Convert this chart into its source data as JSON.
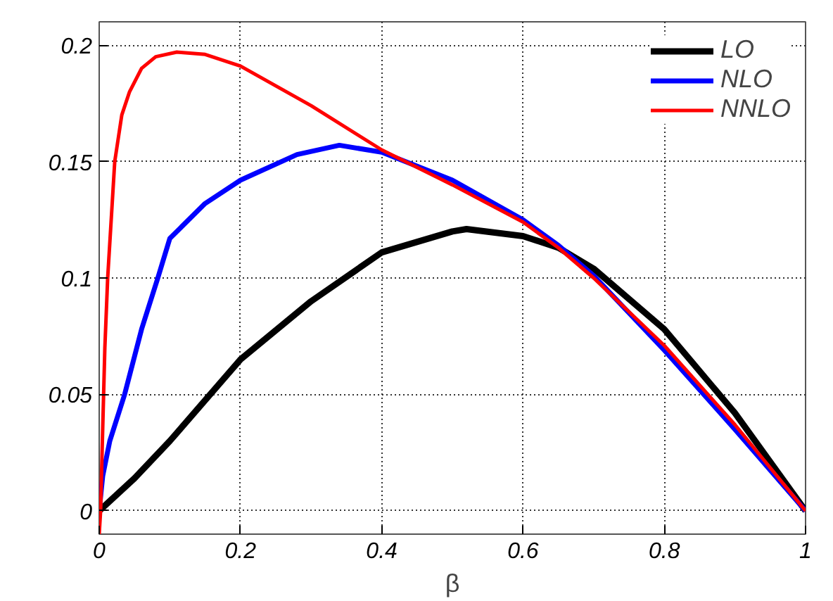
{
  "chart_data": {
    "type": "line",
    "xlabel": "β",
    "xlim": [
      0,
      1
    ],
    "ylim": [
      -0.01,
      0.21
    ],
    "xticks": [
      0,
      0.2,
      0.4,
      0.6,
      0.8,
      1
    ],
    "yticks": [
      0,
      0.05,
      0.1,
      0.15,
      0.2
    ],
    "grid": true,
    "legend": "top right",
    "marker": "none",
    "line_style": "solid",
    "series": [
      {
        "name": "LO",
        "color": "#000000",
        "x": [
          0,
          0.05,
          0.1,
          0.2,
          0.3,
          0.4,
          0.5,
          0.52,
          0.6,
          0.65,
          0.7,
          0.8,
          0.9,
          1
        ],
        "values": [
          0,
          0.014,
          0.03,
          0.065,
          0.09,
          0.111,
          0.12,
          0.121,
          0.118,
          0.113,
          0.104,
          0.078,
          0.042,
          0
        ]
      },
      {
        "name": "NLO",
        "color": "#0000ff",
        "x": [
          0,
          0.005,
          0.015,
          0.036,
          0.06,
          0.083,
          0.1,
          0.15,
          0.2,
          0.28,
          0.34,
          0.4,
          0.5,
          0.6,
          0.65,
          0.7,
          0.8,
          0.9,
          1
        ],
        "values": [
          0,
          0.015,
          0.03,
          0.05,
          0.078,
          0.1,
          0.117,
          0.132,
          0.142,
          0.153,
          0.157,
          0.154,
          0.142,
          0.125,
          0.114,
          0.101,
          0.069,
          0.035,
          0
        ]
      },
      {
        "name": "NNLO",
        "color": "#ff0000",
        "x": [
          0,
          0.002,
          0.0045,
          0.008,
          0.012,
          0.022,
          0.032,
          0.043,
          0.06,
          0.08,
          0.11,
          0.15,
          0.2,
          0.3,
          0.4,
          0.5,
          0.6,
          0.65,
          0.7,
          0.8,
          0.9,
          1
        ],
        "values": [
          -0.01,
          0.0,
          0.03,
          0.07,
          0.1,
          0.15,
          0.17,
          0.18,
          0.19,
          0.195,
          0.197,
          0.196,
          0.191,
          0.174,
          0.155,
          0.14,
          0.124,
          0.113,
          0.1,
          0.071,
          0.037,
          0
        ]
      }
    ]
  }
}
